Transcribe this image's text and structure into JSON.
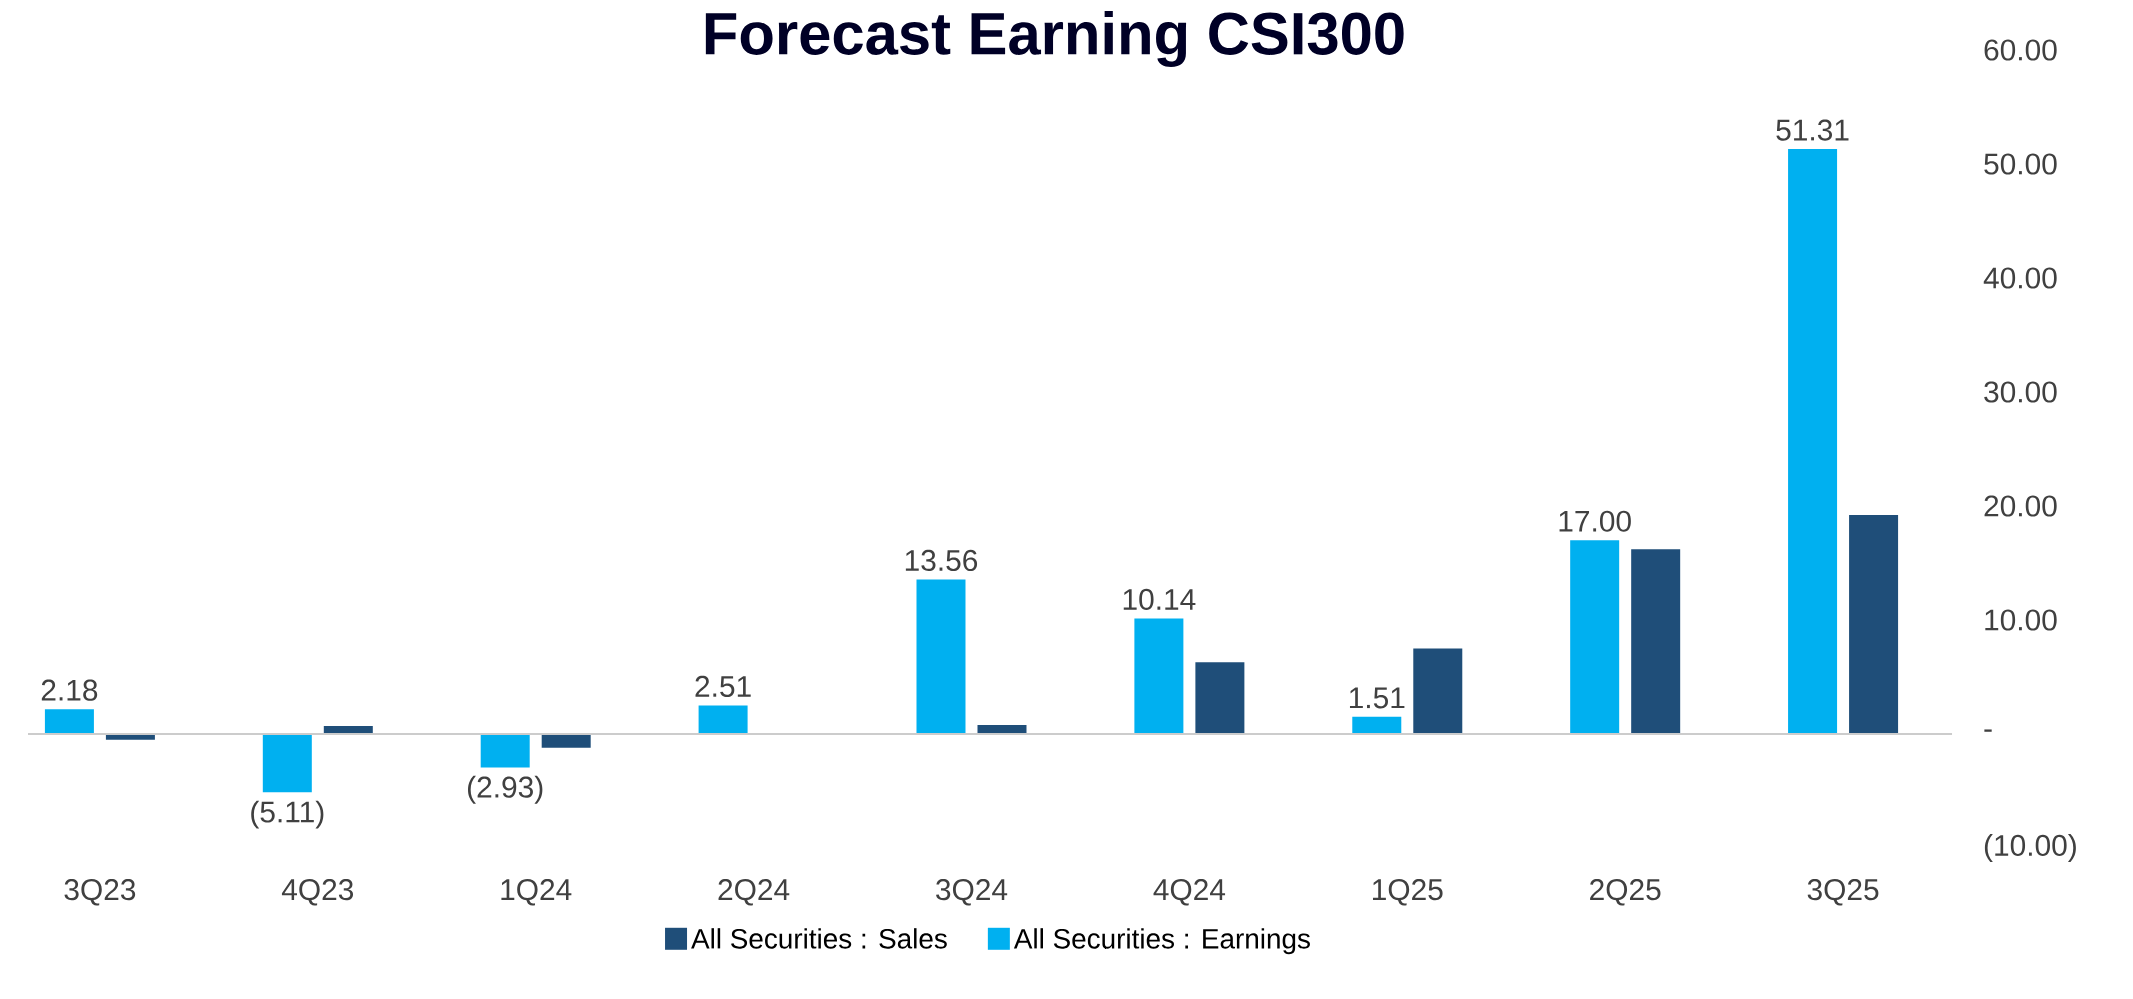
{
  "chart_data": {
    "type": "bar",
    "title": "Forecast Earning CSI300",
    "categories": [
      "3Q23",
      "4Q23",
      "1Q24",
      "2Q24",
      "3Q24",
      "4Q24",
      "1Q25",
      "2Q25",
      "3Q25"
    ],
    "series": [
      {
        "name": "All Securities : Earnings",
        "color": "#00b0f0",
        "values": [
          2.18,
          -5.11,
          -2.93,
          2.51,
          13.56,
          10.14,
          1.51,
          17.0,
          51.31
        ],
        "value_labels": [
          "2.18",
          "(5.11)",
          "(2.93)",
          "2.51",
          "13.56",
          "10.14",
          "1.51",
          "17.00",
          "51.31"
        ]
      },
      {
        "name": "All Securities : Sales",
        "color": "#1f4e79",
        "values": [
          -0.5,
          0.7,
          -1.2,
          0,
          0.8,
          6.3,
          7.5,
          16.2,
          19.2
        ]
      }
    ],
    "ylim": [
      -10,
      60
    ],
    "yticks": [
      {
        "value": -10,
        "label": "(10.00)"
      },
      {
        "value": 0,
        "label": "-"
      },
      {
        "value": 10,
        "label": "10.00"
      },
      {
        "value": 20,
        "label": "20.00"
      },
      {
        "value": 30,
        "label": "30.00"
      },
      {
        "value": 40,
        "label": "40.00"
      },
      {
        "value": 50,
        "label": "50.00"
      },
      {
        "value": 60,
        "label": "60.00"
      }
    ],
    "legend": "bottom"
  }
}
